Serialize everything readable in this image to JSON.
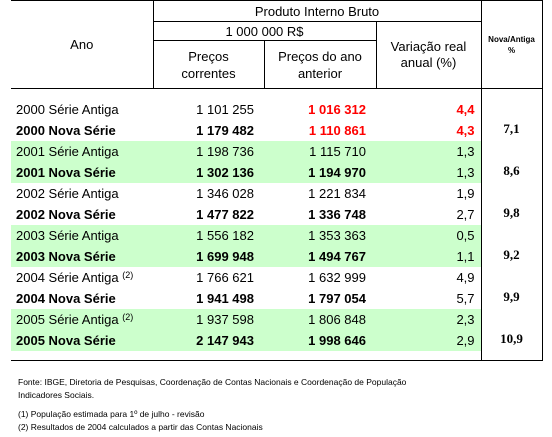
{
  "header": {
    "ano": "Ano",
    "pib": "Produto Interno Bruto",
    "unit": "1 000 000 R$",
    "precos_correntes": "Preços correntes",
    "precos_ano_anterior": "Preços do ano anterior",
    "variacao": "Variação real anual (%)",
    "ratio": "Nova/Antiga %"
  },
  "rows": [
    {
      "ano": "2000 Série Antiga",
      "sup": "",
      "correntes": "1 101 255",
      "anterior": "1 016 312",
      "variacao": "4,4",
      "ratio": ""
    },
    {
      "ano": "2000 Nova Série",
      "sup": "",
      "correntes": "1 179 482",
      "anterior": "1 110 861",
      "variacao": "4,3",
      "ratio": "7,1"
    },
    {
      "ano": "2001 Série Antiga",
      "sup": "",
      "correntes": "1 198 736",
      "anterior": "1 115 710",
      "variacao": "1,3",
      "ratio": ""
    },
    {
      "ano": "2001 Nova Série",
      "sup": "",
      "correntes": "1 302 136",
      "anterior": "1 194 970",
      "variacao": "1,3",
      "ratio": "8,6"
    },
    {
      "ano": "2002 Série Antiga",
      "sup": "",
      "correntes": "1 346 028",
      "anterior": "1 221 834",
      "variacao": "1,9",
      "ratio": ""
    },
    {
      "ano": "2002 Nova Série",
      "sup": "",
      "correntes": "1 477 822",
      "anterior": "1 336 748",
      "variacao": "2,7",
      "ratio": "9,8"
    },
    {
      "ano": "2003 Série Antiga",
      "sup": "",
      "correntes": "1 556 182",
      "anterior": "1 353 363",
      "variacao": "0,5",
      "ratio": ""
    },
    {
      "ano": "2003 Nova Série",
      "sup": "",
      "correntes": "1 699 948",
      "anterior": "1 494 767",
      "variacao": "1,1",
      "ratio": "9,2"
    },
    {
      "ano": "2004 Série Antiga",
      "sup": "(2)",
      "correntes": "1 766 621",
      "anterior": "1 632 999",
      "variacao": "4,9",
      "ratio": ""
    },
    {
      "ano": "2004 Nova Série",
      "sup": "",
      "correntes": "1 941 498",
      "anterior": "1 797 054",
      "variacao": "5,7",
      "ratio": "9,9"
    },
    {
      "ano": "2005 Série Antiga",
      "sup": "(2)",
      "correntes": "1 937 598",
      "anterior": "1 806 848",
      "variacao": "2,3",
      "ratio": ""
    },
    {
      "ano": "2005 Nova Série",
      "sup": "",
      "correntes": "2 147 943",
      "anterior": "1 998 646",
      "variacao": "2,9",
      "ratio": "10,9"
    }
  ],
  "notes": {
    "fonte": "Fonte: IBGE, Diretoria de Pesquisas, Coordenação de Contas Nacionais e Coordenação de População Indicadores Sociais.",
    "nota1": "(1) População estimada para 1º de julho - revisão",
    "nota2": "(2) Resultados de 2004 calculados a partir das Contas Nacionais"
  },
  "colors": {
    "highlight_red": "#ff0000",
    "green_band": "#ccffcc"
  }
}
